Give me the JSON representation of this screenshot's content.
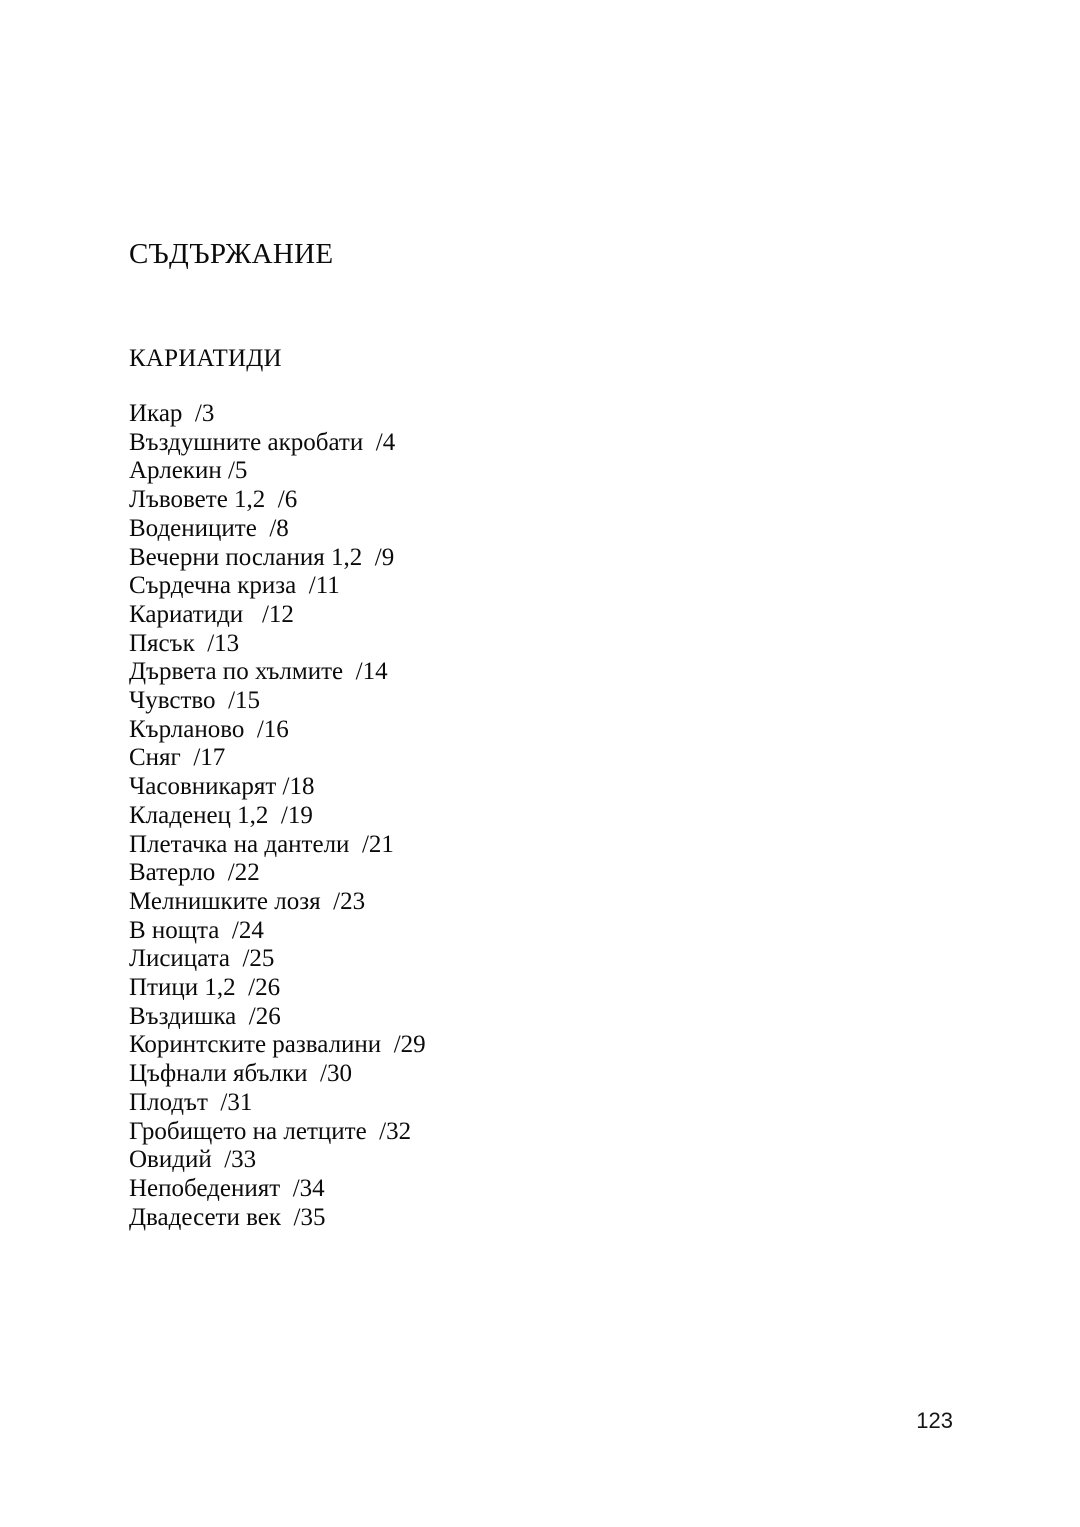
{
  "page": {
    "title": "СЪДЪРЖАНИЕ",
    "section_heading": "КАРИАТИДИ",
    "page_number": "123"
  },
  "toc": {
    "items": [
      {
        "title": "Икар",
        "sep": "  ",
        "page": "/3"
      },
      {
        "title": "Въздушните акробати",
        "sep": "  ",
        "page": "/4"
      },
      {
        "title": "Арлекин",
        "sep": " ",
        "page": "/5"
      },
      {
        "title": "Лъвовете 1,2",
        "sep": "  ",
        "page": "/6"
      },
      {
        "title": "Водениците",
        "sep": "  ",
        "page": "/8"
      },
      {
        "title": "Вечерни послания 1,2",
        "sep": "  ",
        "page": "/9"
      },
      {
        "title": "Сърдечна криза",
        "sep": "  ",
        "page": "/11"
      },
      {
        "title": "Кариатиди",
        "sep": "   ",
        "page": "/12"
      },
      {
        "title": "Пясък",
        "sep": "  ",
        "page": "/13"
      },
      {
        "title": "Дървета по хълмите",
        "sep": "  ",
        "page": "/14"
      },
      {
        "title": "Чувство",
        "sep": "  ",
        "page": "/15"
      },
      {
        "title": "Кърланово",
        "sep": "  ",
        "page": "/16"
      },
      {
        "title": "Сняг",
        "sep": "  ",
        "page": "/17"
      },
      {
        "title": "Часовникарят",
        "sep": " ",
        "page": "/18"
      },
      {
        "title": "Кладенец 1,2",
        "sep": "  ",
        "page": "/19"
      },
      {
        "title": "Плетачка на дантели",
        "sep": "  ",
        "page": "/21"
      },
      {
        "title": "Ватерло",
        "sep": "  ",
        "page": "/22"
      },
      {
        "title": "Мелнишките лозя",
        "sep": "  ",
        "page": "/23"
      },
      {
        "title": "В нощта",
        "sep": "  ",
        "page": "/24"
      },
      {
        "title": "Лисицата",
        "sep": "  ",
        "page": "/25"
      },
      {
        "title": "Птици 1,2",
        "sep": "  ",
        "page": "/26"
      },
      {
        "title": "Въздишка",
        "sep": "  ",
        "page": "/26"
      },
      {
        "title": "Коринтските развалини",
        "sep": "  ",
        "page": "/29"
      },
      {
        "title": "Цъфнали ябълки",
        "sep": "  ",
        "page": "/30"
      },
      {
        "title": "Плодът",
        "sep": "  ",
        "page": "/31"
      },
      {
        "title": "Гробището на летците",
        "sep": "  ",
        "page": "/32"
      },
      {
        "title": "Овидий",
        "sep": "  ",
        "page": "/33"
      },
      {
        "title": "Непобеденият",
        "sep": "  ",
        "page": "/34"
      },
      {
        "title": "Двадесети век",
        "sep": "  ",
        "page": "/35"
      }
    ]
  }
}
